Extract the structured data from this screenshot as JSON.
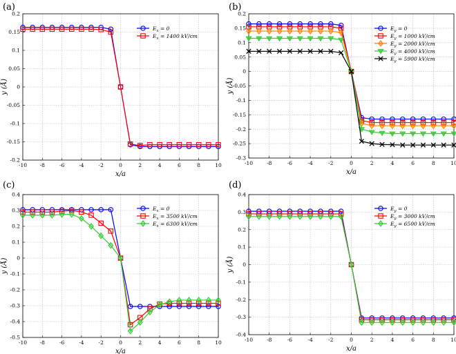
{
  "chart_data": [
    {
      "panel_label": "(a)",
      "type": "line",
      "xlabel": "x/a",
      "ylabel": "y (Å)",
      "xlim": [
        -10,
        10
      ],
      "ylim": [
        -0.2,
        0.2
      ],
      "xticks": [
        "-10",
        "-8",
        "-6",
        "-4",
        "-2",
        "0",
        "2",
        "4",
        "6",
        "8",
        "10"
      ],
      "yticks": [
        "0.2",
        "0.15",
        "0.1",
        "0.05",
        "0",
        "-0.05",
        "-0.1",
        "-0.15",
        "-0.2"
      ],
      "grid": true,
      "legend_position": "top-right",
      "x": [
        -10,
        -9,
        -8,
        -7,
        -6,
        -5,
        -4,
        -3,
        -2,
        -1,
        0,
        1,
        2,
        3,
        4,
        5,
        6,
        7,
        8,
        9,
        10
      ],
      "series": [
        {
          "name": "Ex = 0",
          "legend_main": "E",
          "legend_sub": "x",
          "legend_rest": " = 0",
          "color": "#0000ff",
          "marker": "circle",
          "values": [
            0.163,
            0.163,
            0.163,
            0.163,
            0.163,
            0.163,
            0.163,
            0.163,
            0.163,
            0.158,
            0,
            -0.158,
            -0.163,
            -0.163,
            -0.163,
            -0.163,
            -0.163,
            -0.163,
            -0.163,
            -0.163,
            -0.163
          ]
        },
        {
          "name": "Ex = 1400 kV/cm",
          "legend_main": "E",
          "legend_sub": "x",
          "legend_rest": " = 1400 kV/cm",
          "color": "#ff0000",
          "marker": "square",
          "values": [
            0.158,
            0.158,
            0.158,
            0.158,
            0.158,
            0.158,
            0.158,
            0.158,
            0.157,
            0.15,
            0,
            -0.156,
            -0.16,
            -0.158,
            -0.158,
            -0.158,
            -0.158,
            -0.158,
            -0.158,
            -0.158,
            -0.158
          ]
        }
      ]
    },
    {
      "panel_label": "(b)",
      "type": "line",
      "xlabel": "x/a",
      "ylabel": "y (Å)",
      "xlim": [
        -10,
        10
      ],
      "ylim": [
        -0.3,
        0.2
      ],
      "xticks": [
        "-10",
        "-8",
        "-6",
        "-4",
        "-2",
        "0",
        "2",
        "4",
        "6",
        "8",
        "10"
      ],
      "yticks": [
        "0.2",
        "0.15",
        "0.1",
        "0.05",
        "0",
        "-0.05",
        "-0.1",
        "-0.15",
        "-0.2",
        "-0.25",
        "-0.3"
      ],
      "grid": true,
      "legend_position": "top-right",
      "x": [
        -10,
        -9,
        -8,
        -7,
        -6,
        -5,
        -4,
        -3,
        -2,
        -1,
        0,
        1,
        2,
        3,
        4,
        5,
        6,
        7,
        8,
        9,
        10
      ],
      "series": [
        {
          "name": "Ey = 0",
          "legend_main": "E",
          "legend_sub": "y",
          "legend_rest": " = 0",
          "color": "#0000ff",
          "marker": "circle",
          "values": [
            0.165,
            0.165,
            0.165,
            0.165,
            0.165,
            0.165,
            0.165,
            0.165,
            0.165,
            0.16,
            0,
            -0.16,
            -0.165,
            -0.165,
            -0.165,
            -0.165,
            -0.165,
            -0.165,
            -0.165,
            -0.165,
            -0.165
          ]
        },
        {
          "name": "Ey = 1000 kV/cm",
          "legend_main": "E",
          "legend_sub": "y",
          "legend_rest": " = 1000 kV/cm",
          "color": "#ff0000",
          "marker": "square",
          "values": [
            0.155,
            0.155,
            0.155,
            0.155,
            0.155,
            0.155,
            0.155,
            0.155,
            0.155,
            0.15,
            0,
            -0.17,
            -0.177,
            -0.177,
            -0.177,
            -0.177,
            -0.177,
            -0.177,
            -0.177,
            -0.177,
            -0.177
          ]
        },
        {
          "name": "Ey = 2000 kV/cm",
          "legend_main": "E",
          "legend_sub": "y",
          "legend_rest": " = 2000 kV/cm",
          "color": "#ff8000",
          "marker": "diamond",
          "values": [
            0.14,
            0.14,
            0.14,
            0.14,
            0.14,
            0.14,
            0.14,
            0.14,
            0.14,
            0.135,
            0,
            -0.18,
            -0.188,
            -0.188,
            -0.188,
            -0.188,
            -0.188,
            -0.188,
            -0.188,
            -0.188,
            -0.188
          ]
        },
        {
          "name": "Ey = 4000 kV/cm",
          "legend_main": "E",
          "legend_sub": "y",
          "legend_rest": " = 4000 kV/cm",
          "color": "#33cc33",
          "marker": "triangle-down",
          "values": [
            0.115,
            0.115,
            0.115,
            0.115,
            0.115,
            0.115,
            0.115,
            0.115,
            0.115,
            0.11,
            0,
            -0.2,
            -0.21,
            -0.213,
            -0.215,
            -0.215,
            -0.215,
            -0.215,
            -0.215,
            -0.215,
            -0.215
          ]
        },
        {
          "name": "Ey = 5900 kV/cm",
          "legend_main": "E",
          "legend_sub": "y",
          "legend_rest": " = 5900 kV/cm",
          "color": "#000000",
          "marker": "x",
          "values": [
            0.07,
            0.07,
            0.07,
            0.07,
            0.07,
            0.07,
            0.07,
            0.07,
            0.07,
            0.065,
            0,
            -0.242,
            -0.25,
            -0.253,
            -0.254,
            -0.255,
            -0.255,
            -0.255,
            -0.255,
            -0.255,
            -0.255
          ]
        }
      ]
    },
    {
      "panel_label": "(c)",
      "type": "line",
      "xlabel": "x/a",
      "ylabel": "y (Å)",
      "xlim": [
        -10,
        10
      ],
      "ylim": [
        -0.5,
        0.4
      ],
      "xticks": [
        "-10",
        "-8",
        "-6",
        "-4",
        "-2",
        "0",
        "2",
        "4",
        "6",
        "8",
        "10"
      ],
      "yticks": [
        "0.4",
        "0.3",
        "0.2",
        "0.1",
        "0",
        "-0.1",
        "-0.2",
        "-0.3",
        "-0.4",
        "-0.5"
      ],
      "grid": true,
      "legend_position": "top-right",
      "x": [
        -10,
        -9,
        -8,
        -7,
        -6,
        -5,
        -4,
        -3,
        -2,
        -1,
        0,
        1,
        2,
        3,
        4,
        5,
        6,
        7,
        8,
        9,
        10
      ],
      "series": [
        {
          "name": "Ex = 0",
          "legend_main": "E",
          "legend_sub": "x",
          "legend_rest": " = 0",
          "color": "#0000ff",
          "marker": "circle",
          "values": [
            0.305,
            0.305,
            0.305,
            0.305,
            0.305,
            0.305,
            0.305,
            0.305,
            0.305,
            0.305,
            0,
            -0.305,
            -0.305,
            -0.305,
            -0.305,
            -0.305,
            -0.305,
            -0.305,
            -0.305,
            -0.305,
            -0.305
          ]
        },
        {
          "name": "Ex = 3500 kV/cm",
          "legend_main": "E",
          "legend_sub": "x",
          "legend_rest": " = 3500 kV/cm",
          "color": "#ff0000",
          "marker": "square",
          "values": [
            0.29,
            0.29,
            0.29,
            0.29,
            0.295,
            0.3,
            0.29,
            0.27,
            0.22,
            0.17,
            0,
            -0.42,
            -0.375,
            -0.32,
            -0.29,
            -0.285,
            -0.285,
            -0.285,
            -0.285,
            -0.285,
            -0.285
          ]
        },
        {
          "name": "Ex = 6300 kV/cm",
          "legend_main": "E",
          "legend_sub": "x",
          "legend_rest": " = 6300 kV/cm",
          "color": "#33cc33",
          "marker": "diamond",
          "values": [
            0.27,
            0.27,
            0.27,
            0.27,
            0.275,
            0.275,
            0.25,
            0.2,
            0.14,
            0.08,
            0,
            -0.46,
            -0.405,
            -0.34,
            -0.295,
            -0.275,
            -0.265,
            -0.265,
            -0.265,
            -0.265,
            -0.265
          ]
        }
      ]
    },
    {
      "panel_label": "(d)",
      "type": "line",
      "xlabel": "x/a",
      "ylabel": "y (Å)",
      "xlim": [
        -10,
        10
      ],
      "ylim": [
        -0.4,
        0.4
      ],
      "xticks": [
        "-10",
        "-8",
        "-6",
        "-4",
        "-2",
        "0",
        "2",
        "4",
        "6",
        "8",
        "10"
      ],
      "yticks": [
        "0.4",
        "0.3",
        "0.2",
        "0.1",
        "0",
        "-0.1",
        "-0.2",
        "-0.3",
        "-0.4"
      ],
      "grid": true,
      "legend_position": "top-right",
      "x": [
        -10,
        -9,
        -8,
        -7,
        -6,
        -5,
        -4,
        -3,
        -2,
        -1,
        0,
        1,
        2,
        3,
        4,
        5,
        6,
        7,
        8,
        9,
        10
      ],
      "series": [
        {
          "name": "Ey = 0",
          "legend_main": "E",
          "legend_sub": "y",
          "legend_rest": " = 0",
          "color": "#0000ff",
          "marker": "circle",
          "values": [
            0.305,
            0.305,
            0.305,
            0.305,
            0.305,
            0.305,
            0.305,
            0.305,
            0.305,
            0.305,
            0,
            -0.305,
            -0.305,
            -0.305,
            -0.305,
            -0.305,
            -0.305,
            -0.305,
            -0.305,
            -0.305,
            -0.305
          ]
        },
        {
          "name": "Ey = 3000 kV/cm",
          "legend_main": "E",
          "legend_sub": "y",
          "legend_rest": " = 3000 kV/cm",
          "color": "#ff0000",
          "marker": "square",
          "values": [
            0.29,
            0.29,
            0.29,
            0.29,
            0.29,
            0.29,
            0.29,
            0.29,
            0.29,
            0.29,
            0,
            -0.315,
            -0.315,
            -0.315,
            -0.315,
            -0.315,
            -0.315,
            -0.315,
            -0.315,
            -0.315,
            -0.315
          ]
        },
        {
          "name": "Ey = 6500 kV/cm",
          "legend_main": "E",
          "legend_sub": "y",
          "legend_rest": " = 6500 kV/cm",
          "color": "#33cc33",
          "marker": "diamond",
          "values": [
            0.275,
            0.275,
            0.275,
            0.275,
            0.275,
            0.275,
            0.275,
            0.275,
            0.275,
            0.275,
            0,
            -0.33,
            -0.33,
            -0.33,
            -0.33,
            -0.33,
            -0.33,
            -0.33,
            -0.33,
            -0.33,
            -0.33
          ]
        }
      ]
    }
  ]
}
